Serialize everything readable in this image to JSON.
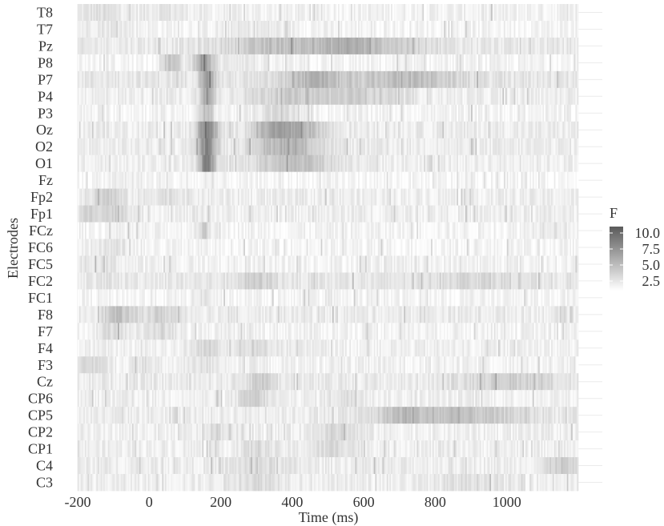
{
  "chart_data": {
    "type": "heatmap",
    "xlabel": "Time (ms)",
    "ylabel": "Electrodes",
    "x_ticks": [
      -200,
      0,
      200,
      400,
      600,
      800,
      1000
    ],
    "xlim": [
      -200,
      1200
    ],
    "time_step_ms": 4,
    "electrodes": [
      "T8",
      "T7",
      "Pz",
      "P8",
      "P7",
      "P4",
      "P3",
      "Oz",
      "O2",
      "O1",
      "Fz",
      "Fp2",
      "Fp1",
      "FCz",
      "FC6",
      "FC5",
      "FC2",
      "FC1",
      "F8",
      "F7",
      "F4",
      "F3",
      "Cz",
      "CP6",
      "CP5",
      "CP2",
      "CP1",
      "C4",
      "C3"
    ],
    "legend": {
      "title": "F",
      "ticks": [
        10.0,
        7.5,
        5.0,
        2.5
      ],
      "tick_labels": [
        "10.0",
        "7.5",
        "5.0",
        "2.5"
      ],
      "range": [
        1.0,
        11.0
      ],
      "color_low": "#ffffff",
      "color_high": "#5a5a5a"
    },
    "profiles": {
      "T8": {
        "base": 1.7,
        "peaks": [
          [
            -140,
            50,
            1.0
          ],
          [
            40,
            50,
            0.8
          ]
        ]
      },
      "T7": {
        "base": 1.6,
        "peaks": [
          [
            -120,
            60,
            0.8
          ],
          [
            300,
            80,
            0.6
          ]
        ]
      },
      "Pz": {
        "base": 2.2,
        "peaks": [
          [
            380,
            120,
            2.5
          ],
          [
            560,
            60,
            2.5
          ],
          [
            700,
            80,
            1.5
          ]
        ]
      },
      "P8": {
        "base": 1.5,
        "peaks": [
          [
            150,
            20,
            5.5
          ],
          [
            60,
            20,
            3.0
          ],
          [
            250,
            40,
            1.0
          ]
        ]
      },
      "P7": {
        "base": 2.4,
        "peaks": [
          [
            160,
            15,
            5.0
          ],
          [
            460,
            60,
            3.0
          ],
          [
            720,
            100,
            2.5
          ]
        ]
      },
      "P4": {
        "base": 1.9,
        "peaks": [
          [
            160,
            15,
            4.0
          ],
          [
            400,
            100,
            2.0
          ],
          [
            600,
            80,
            1.5
          ]
        ]
      },
      "P3": {
        "base": 1.6,
        "peaks": [
          [
            160,
            15,
            3.0
          ],
          [
            360,
            40,
            1.5
          ]
        ]
      },
      "Oz": {
        "base": 2.0,
        "peaks": [
          [
            160,
            20,
            6.5
          ],
          [
            360,
            50,
            4.5
          ],
          [
            450,
            40,
            2.0
          ]
        ]
      },
      "O2": {
        "base": 2.0,
        "peaks": [
          [
            160,
            20,
            6.0
          ],
          [
            380,
            70,
            3.5
          ]
        ]
      },
      "O1": {
        "base": 1.9,
        "peaks": [
          [
            160,
            15,
            7.0
          ],
          [
            400,
            80,
            3.0
          ]
        ]
      },
      "Fz": {
        "base": 1.4,
        "peaks": [
          [
            -60,
            40,
            0.6
          ]
        ]
      },
      "Fp2": {
        "base": 1.9,
        "peaks": [
          [
            -120,
            30,
            2.0
          ],
          [
            50,
            40,
            1.0
          ]
        ]
      },
      "Fp1": {
        "base": 1.9,
        "peaks": [
          [
            -160,
            30,
            1.6
          ],
          [
            -90,
            30,
            1.6
          ]
        ]
      },
      "FCz": {
        "base": 1.6,
        "peaks": [
          [
            150,
            15,
            2.0
          ],
          [
            1120,
            40,
            1.0
          ]
        ]
      },
      "FC6": {
        "base": 1.5,
        "peaks": [
          [
            -100,
            40,
            1.0
          ]
        ]
      },
      "FC5": {
        "base": 1.7,
        "peaks": [
          [
            -140,
            40,
            1.0
          ]
        ]
      },
      "FC2": {
        "base": 2.3,
        "peaks": [
          [
            300,
            40,
            1.5
          ],
          [
            900,
            100,
            1.0
          ]
        ]
      },
      "FC1": {
        "base": 1.5,
        "peaks": [
          [
            150,
            20,
            1.0
          ]
        ]
      },
      "F8": {
        "base": 2.1,
        "peaks": [
          [
            -90,
            30,
            2.5
          ],
          [
            30,
            40,
            1.5
          ]
        ]
      },
      "F7": {
        "base": 1.7,
        "peaks": [
          [
            -100,
            30,
            1.5
          ],
          [
            30,
            30,
            1.5
          ]
        ]
      },
      "F4": {
        "base": 1.8,
        "peaks": [
          [
            160,
            30,
            1.5
          ],
          [
            300,
            60,
            1.0
          ]
        ]
      },
      "F3": {
        "base": 1.7,
        "peaks": [
          [
            -160,
            30,
            1.5
          ],
          [
            -20,
            20,
            1.0
          ],
          [
            160,
            30,
            1.0
          ]
        ]
      },
      "Cz": {
        "base": 2.1,
        "peaks": [
          [
            310,
            30,
            2.0
          ],
          [
            1000,
            100,
            1.8
          ]
        ]
      },
      "CP6": {
        "base": 1.8,
        "peaks": [
          [
            290,
            30,
            2.0
          ],
          [
            550,
            40,
            1.0
          ]
        ]
      },
      "CP5": {
        "base": 2.0,
        "peaks": [
          [
            850,
            150,
            2.5
          ],
          [
            700,
            40,
            1.5
          ]
        ]
      },
      "CP2": {
        "base": 1.8,
        "peaks": [
          [
            520,
            50,
            1.5
          ],
          [
            200,
            30,
            1.0
          ]
        ]
      },
      "CP1": {
        "base": 1.9,
        "peaks": [
          [
            520,
            50,
            1.2
          ],
          [
            300,
            30,
            1.2
          ]
        ]
      },
      "C4": {
        "base": 2.0,
        "peaks": [
          [
            1150,
            30,
            2.0
          ],
          [
            300,
            60,
            1.0
          ]
        ]
      },
      "C3": {
        "base": 1.9,
        "peaks": [
          [
            300,
            60,
            1.2
          ],
          [
            900,
            60,
            1.0
          ]
        ]
      }
    }
  }
}
